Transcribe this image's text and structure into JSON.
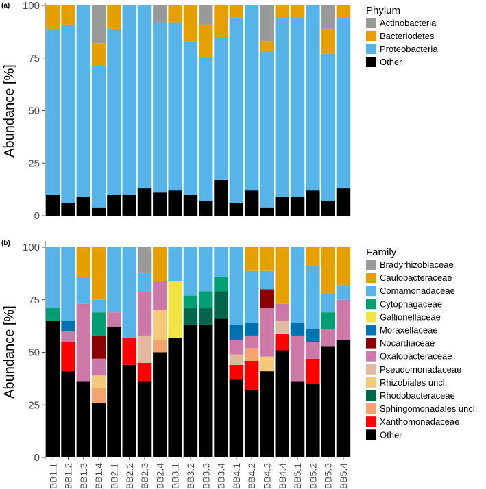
{
  "chart_data": [
    {
      "panel": "(a)",
      "type": "bar",
      "stacked": true,
      "ylabel": "Abundance [%]",
      "xlabel": "",
      "ylim": [
        0,
        100
      ],
      "yticks": [
        0,
        25,
        50,
        75,
        100
      ],
      "categories": [
        "BB1.1",
        "BB1.2",
        "BB1.3",
        "BB1.4",
        "BB2.1",
        "BB2.2",
        "BB2.3",
        "BB2.4",
        "BB3.1",
        "BB3.2",
        "BB3.3",
        "BB3.4",
        "BB4.1",
        "BB4.2",
        "BB4.3",
        "BB4.4",
        "BB5.1",
        "BB5.2",
        "BB5.3",
        "BB5.4"
      ],
      "legend_title": "Phylum",
      "legend_position": "right",
      "stack_order": [
        "Other",
        "Proteobacteria",
        "Bacteriodetes",
        "Actinobacteria"
      ],
      "series": [
        {
          "name": "Actinobacteria",
          "color": "#999999",
          "values": [
            0,
            0,
            0,
            18,
            0,
            0,
            0,
            8,
            0,
            0,
            9,
            0,
            0,
            0,
            17,
            0,
            0,
            0,
            11,
            0
          ]
        },
        {
          "name": "Bacteriodetes",
          "color": "#E69F00",
          "values": [
            11,
            9,
            0,
            11,
            11,
            0,
            0,
            0,
            8,
            17,
            16,
            15,
            6,
            0,
            5,
            6,
            6,
            0,
            12,
            6
          ]
        },
        {
          "name": "Proteobacteria",
          "color": "#56B4E9",
          "values": [
            79,
            85,
            91,
            67,
            79,
            90,
            87,
            81,
            80,
            73,
            68,
            68,
            88,
            88,
            74,
            85,
            85,
            88,
            70,
            81
          ]
        },
        {
          "name": "Other",
          "color": "#000000",
          "values": [
            10,
            6,
            9,
            4,
            10,
            10,
            13,
            11,
            12,
            10,
            7,
            17,
            6,
            12,
            4,
            9,
            9,
            12,
            7,
            13
          ]
        }
      ]
    },
    {
      "panel": "(b)",
      "type": "bar",
      "stacked": true,
      "ylabel": "Abundance [%]",
      "xlabel": "",
      "ylim": [
        0,
        100
      ],
      "yticks": [
        0,
        25,
        50,
        75,
        100
      ],
      "categories": [
        "BB1.1",
        "BB1.2",
        "BB1.3",
        "BB1.4",
        "BB2.1",
        "BB2.2",
        "BB2.3",
        "BB2.4",
        "BB3.1",
        "BB3.2",
        "BB3.3",
        "BB3.4",
        "BB4.1",
        "BB4.2",
        "BB4.3",
        "BB4.4",
        "BB5.1",
        "BB5.2",
        "BB5.3",
        "BB5.4"
      ],
      "legend_title": "Family",
      "legend_position": "right",
      "stack_order": [
        "Other",
        "Xanthomonadaceae",
        "Sphingomonadales uncl.",
        "Rhodobacteraceae",
        "Rhizobiales uncl.",
        "Pseudomonadaceae",
        "Oxalobacteraceae",
        "Nocardiaceae",
        "Moraxellaceae",
        "Gallionellaceae",
        "Cytophagaceae",
        "Comamonadaceae",
        "Caulobacteraceae",
        "Bradyrhizobiaceae"
      ],
      "series": [
        {
          "name": "Bradyrhizobiaceae",
          "color": "#999999",
          "values": [
            0,
            0,
            0,
            0,
            0,
            0,
            12,
            0,
            0,
            0,
            0,
            0,
            0,
            0,
            0,
            0,
            0,
            0,
            0,
            0
          ]
        },
        {
          "name": "Caulobacteraceae",
          "color": "#E69F00",
          "values": [
            0,
            0,
            14,
            25,
            0,
            0,
            0,
            16,
            0,
            0,
            0,
            0,
            0,
            11,
            11,
            27,
            0,
            9,
            22,
            18
          ]
        },
        {
          "name": "Comamonadaceae",
          "color": "#56B4E9",
          "values": [
            29,
            35,
            13,
            6,
            31,
            43,
            9,
            0,
            16,
            23,
            21,
            14,
            37,
            25,
            9,
            0,
            36,
            30,
            9,
            7
          ]
        },
        {
          "name": "Cytophagaceae",
          "color": "#009E73",
          "values": [
            6,
            0,
            0,
            11,
            0,
            0,
            0,
            0,
            0,
            6,
            8,
            7,
            0,
            0,
            0,
            0,
            0,
            0,
            8,
            0
          ]
        },
        {
          "name": "Gallionellaceae",
          "color": "#F0E442",
          "values": [
            0,
            0,
            0,
            0,
            0,
            0,
            0,
            0,
            27,
            0,
            0,
            0,
            0,
            0,
            0,
            0,
            0,
            0,
            0,
            0
          ]
        },
        {
          "name": "Moraxellaceae",
          "color": "#0072B2",
          "values": [
            0,
            5,
            0,
            0,
            0,
            0,
            0,
            0,
            0,
            0,
            0,
            0,
            7,
            6,
            0,
            0,
            6,
            6,
            0,
            0
          ]
        },
        {
          "name": "Nocardiaceae",
          "color": "#8B0000",
          "values": [
            0,
            0,
            0,
            11,
            0,
            0,
            0,
            0,
            0,
            0,
            0,
            0,
            0,
            0,
            9,
            0,
            0,
            0,
            0,
            0
          ]
        },
        {
          "name": "Oxalobacteraceae",
          "color": "#CC79A7",
          "values": [
            0,
            5,
            37,
            8,
            7,
            0,
            21,
            14,
            0,
            0,
            0,
            0,
            7,
            6,
            23,
            8,
            22,
            8,
            8,
            19
          ]
        },
        {
          "name": "Pseudomonadaceae",
          "color": "#E3B8A0",
          "values": [
            0,
            0,
            0,
            0,
            0,
            0,
            13,
            0,
            0,
            0,
            0,
            0,
            5,
            0,
            0,
            6,
            0,
            0,
            0,
            0
          ]
        },
        {
          "name": "Rhizobiales uncl.",
          "color": "#F5C97A",
          "values": [
            0,
            0,
            0,
            6,
            0,
            0,
            0,
            14,
            0,
            0,
            0,
            0,
            0,
            0,
            7,
            0,
            0,
            0,
            0,
            0
          ]
        },
        {
          "name": "Rhodobacteraceae",
          "color": "#00664B",
          "values": [
            0,
            0,
            0,
            0,
            0,
            0,
            0,
            0,
            0,
            8,
            8,
            13,
            0,
            0,
            0,
            0,
            0,
            0,
            0,
            0
          ]
        },
        {
          "name": "Sphingomonadales uncl.",
          "color": "#F4A46E",
          "values": [
            0,
            0,
            0,
            7,
            0,
            0,
            0,
            6,
            0,
            0,
            0,
            0,
            0,
            6,
            0,
            0,
            0,
            0,
            0,
            0
          ]
        },
        {
          "name": "Xanthomonadaceae",
          "color": "#FF0000",
          "values": [
            0,
            14,
            0,
            0,
            0,
            13,
            9,
            0,
            0,
            0,
            0,
            0,
            7,
            14,
            0,
            8,
            0,
            12,
            0,
            0
          ]
        },
        {
          "name": "Other",
          "color": "#000000",
          "values": [
            65,
            41,
            36,
            26,
            62,
            44,
            36,
            50,
            57,
            63,
            63,
            66,
            37,
            32,
            41,
            51,
            36,
            35,
            53,
            56
          ]
        }
      ]
    }
  ]
}
